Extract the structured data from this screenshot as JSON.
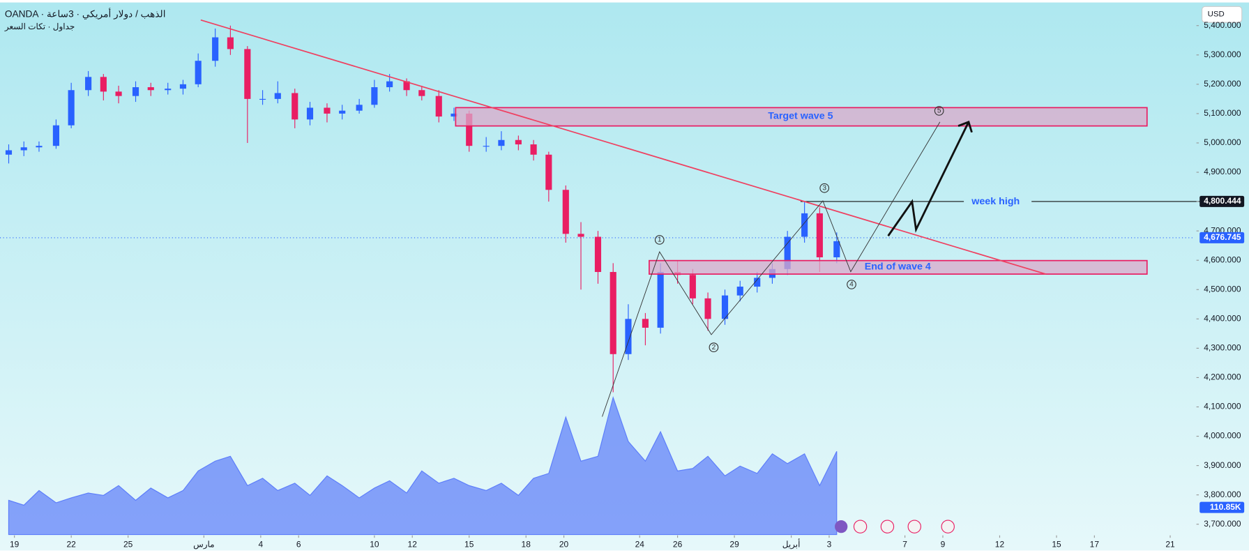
{
  "header": {
    "symbol_line": "OANDA · الذهب / دولار أمريكي · 3ساعة",
    "sub_line": "جداول · تكات السعر",
    "currency": "USD"
  },
  "chart_data": {
    "type": "candlestick",
    "x": [
      -0.3,
      0.5,
      1.3,
      2.2,
      3.0,
      3.9,
      4.7,
      5.5,
      6.4,
      7.2,
      8.1,
      8.9,
      9.7,
      10.6,
      11.4,
      12.3,
      13.1,
      13.9,
      14.8,
      15.6,
      16.5,
      17.3,
      18.2,
      19.0,
      19.8,
      20.7,
      21.5,
      22.4,
      23.2,
      24.0,
      24.9,
      25.7,
      26.6,
      27.4,
      28.2,
      29.1,
      29.9,
      30.8,
      31.6,
      32.4,
      33.3,
      34.1,
      35.0,
      35.8,
      36.6,
      37.5,
      38.3,
      39.2,
      40.0,
      40.8,
      41.7,
      42.5,
      43.4
    ],
    "open": [
      4960,
      4975,
      4985,
      4990,
      5060,
      5180,
      5225,
      5175,
      5160,
      5190,
      5180,
      5185,
      5200,
      5280,
      5360,
      5320,
      5150,
      5150,
      5170,
      5080,
      5120,
      5100,
      5110,
      5130,
      5190,
      5210,
      5180,
      5160,
      5090,
      5100,
      4990,
      4990,
      5010,
      4995,
      4960,
      4840,
      4690,
      4680,
      4560,
      4280,
      4400,
      4370,
      4560,
      4550,
      4470,
      4400,
      4480,
      4510,
      4540,
      4570,
      4680,
      4760,
      4610
    ],
    "high": [
      4995,
      5005,
      5005,
      5080,
      5205,
      5245,
      5235,
      5195,
      5210,
      5205,
      5205,
      5215,
      5305,
      5390,
      5400,
      5330,
      5180,
      5210,
      5185,
      5140,
      5135,
      5130,
      5150,
      5215,
      5235,
      5220,
      5195,
      5180,
      5120,
      5110,
      5020,
      5040,
      5025,
      5010,
      4970,
      4855,
      4730,
      4700,
      4590,
      4450,
      4420,
      4590,
      4600,
      4570,
      4490,
      4500,
      4530,
      4560,
      4590,
      4700,
      4800,
      4780,
      4695
    ],
    "low": [
      4930,
      4955,
      4970,
      4980,
      5050,
      5160,
      5145,
      5135,
      5140,
      5160,
      5165,
      5165,
      5190,
      5260,
      5300,
      5000,
      5130,
      5135,
      5050,
      5060,
      5070,
      5080,
      5100,
      5120,
      5175,
      5160,
      5145,
      5070,
      5075,
      4970,
      4970,
      4975,
      4975,
      4940,
      4800,
      4660,
      4500,
      4520,
      4150,
      4260,
      4310,
      4350,
      4520,
      4450,
      4360,
      4380,
      4460,
      4490,
      4520,
      4550,
      4660,
      4560,
      4590
    ],
    "close": [
      4975,
      4985,
      4990,
      5060,
      5180,
      5225,
      5175,
      5160,
      5190,
      5180,
      5185,
      5200,
      5280,
      5360,
      5320,
      5150,
      5150,
      5170,
      5080,
      5120,
      5100,
      5110,
      5130,
      5190,
      5210,
      5180,
      5160,
      5090,
      5100,
      4990,
      4990,
      5010,
      4995,
      4960,
      4840,
      4690,
      4680,
      4560,
      4280,
      4400,
      4370,
      4560,
      4550,
      4470,
      4400,
      4480,
      4510,
      4540,
      4570,
      4680,
      4760,
      4610,
      4665
    ],
    "volume": [
      140,
      120,
      180,
      130,
      150,
      170,
      160,
      200,
      140,
      190,
      150,
      180,
      260,
      300,
      320,
      200,
      230,
      180,
      210,
      160,
      240,
      200,
      150,
      190,
      220,
      170,
      260,
      210,
      230,
      200,
      180,
      210,
      160,
      230,
      250,
      480,
      300,
      320,
      560,
      380,
      300,
      420,
      260,
      270,
      320,
      240,
      280,
      250,
      330,
      290,
      330,
      200,
      340
    ],
    "up_color": "#2962ff",
    "down_color": "#e91e63",
    "volume_color": "#5b7cfa",
    "xlim": [
      -0.76,
      62.3
    ],
    "xticks": [
      {
        "value": 0,
        "label": "19"
      },
      {
        "value": 3,
        "label": "22"
      },
      {
        "value": 6,
        "label": "25"
      },
      {
        "value": 10,
        "label": "مارس"
      },
      {
        "value": 13,
        "label": "4"
      },
      {
        "value": 15,
        "label": "6"
      },
      {
        "value": 19,
        "label": "10"
      },
      {
        "value": 21,
        "label": "12"
      },
      {
        "value": 24,
        "label": "15"
      },
      {
        "value": 27,
        "label": "18"
      },
      {
        "value": 29,
        "label": "20"
      },
      {
        "value": 33,
        "label": "24"
      },
      {
        "value": 35,
        "label": "26"
      },
      {
        "value": 38,
        "label": "29"
      },
      {
        "value": 41,
        "label": "أبريل"
      },
      {
        "value": 43,
        "label": "3"
      },
      {
        "value": 47,
        "label": "7"
      },
      {
        "value": 49,
        "label": "9"
      },
      {
        "value": 52,
        "label": "12"
      },
      {
        "value": 55,
        "label": "15"
      },
      {
        "value": 57,
        "label": "17"
      },
      {
        "value": 61,
        "label": "21"
      }
    ],
    "ylim": [
      3664.7,
      5478.8
    ],
    "yticks": [
      {
        "value": 3700,
        "label": "3,700.000"
      },
      {
        "value": 3800,
        "label": "3,800.000"
      },
      {
        "value": 3900,
        "label": "3,900.000"
      },
      {
        "value": 4000,
        "label": "4,000.000"
      },
      {
        "value": 4100,
        "label": "4,100.000"
      },
      {
        "value": 4200,
        "label": "4,200.000"
      },
      {
        "value": 4300,
        "label": "4,300.000"
      },
      {
        "value": 4400,
        "label": "4,400.000"
      },
      {
        "value": 4500,
        "label": "4,500.000"
      },
      {
        "value": 4600,
        "label": "4,600.000"
      },
      {
        "value": 4700,
        "label": "4,700.000"
      },
      {
        "value": 4800,
        "label": "4,800.000"
      },
      {
        "value": 4900,
        "label": "4,900.000"
      },
      {
        "value": 5000,
        "label": "5,000.000"
      },
      {
        "value": 5100,
        "label": "5,100.000"
      },
      {
        "value": 5200,
        "label": "5,200.000"
      },
      {
        "value": 5300,
        "label": "5,300.000"
      },
      {
        "value": 5400,
        "label": "5,400.000"
      }
    ],
    "volume_ylim": [
      0,
      550
    ],
    "current_price": {
      "value": 4676.745,
      "label": "4,676.745"
    },
    "week_high": {
      "value": 4800.444,
      "label": "4,800.444"
    },
    "current_volume": {
      "value": 110.85,
      "label": "110.85K"
    },
    "annotations": {
      "target": "Target wave 5",
      "week_high": "week high",
      "wave4_end": "End of wave 4",
      "waves": [
        "1",
        "2",
        "3",
        "4",
        "5"
      ]
    }
  }
}
